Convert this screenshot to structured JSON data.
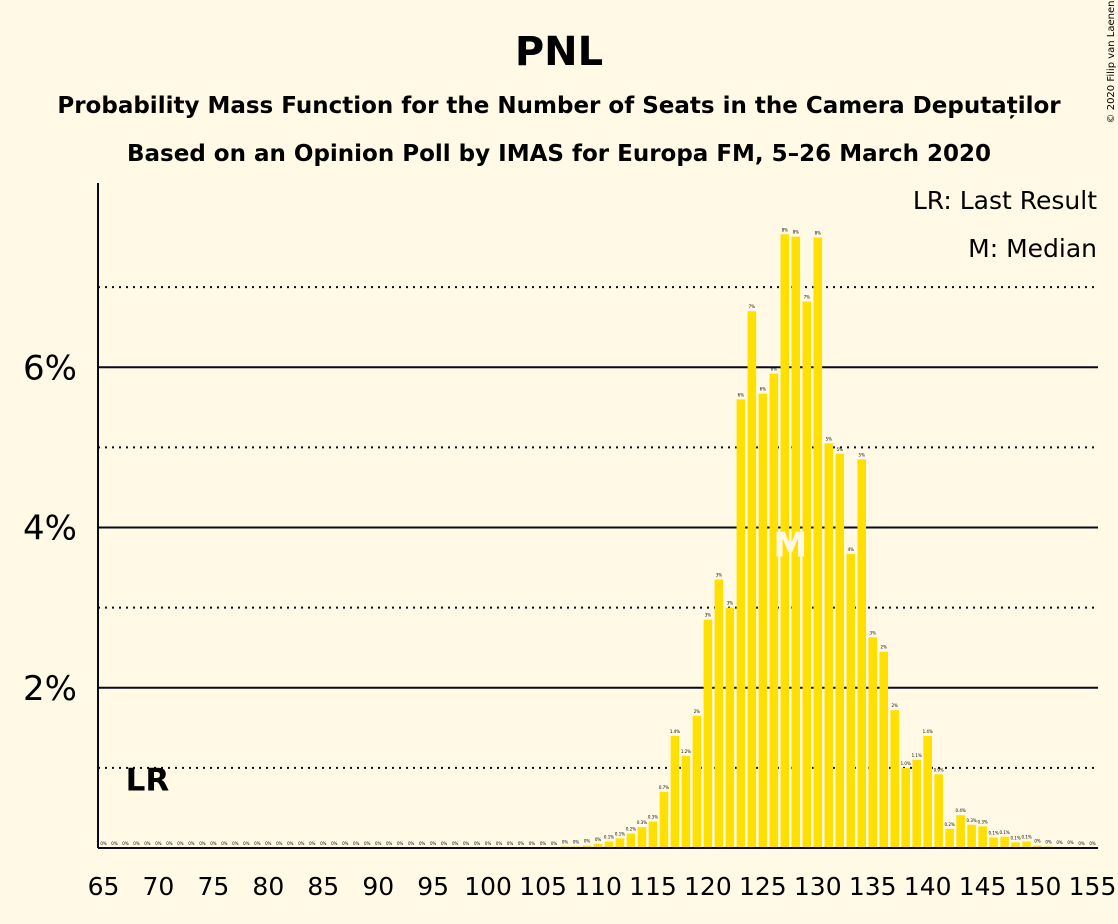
{
  "chart_data": {
    "type": "bar",
    "title": "PNL",
    "subtitle_1": "Probability Mass Function for the Number of Seats in the Camera Deputaților",
    "subtitle_2": "Based on an Opinion Poll by IMAS for Europa FM, 5–26 March 2020",
    "copyright": "© 2020 Filip van Laenen",
    "legend": [
      "LR: Last Result",
      "M: Median"
    ],
    "legend_position": "top-right",
    "last_result": {
      "seat": 69,
      "label": "LR"
    },
    "median": {
      "seat": 127,
      "label": "M"
    },
    "bar_color": "#ffe000",
    "x_range": [
      65,
      155
    ],
    "x_ticks": [
      "65",
      "70",
      "75",
      "80",
      "85",
      "90",
      "95",
      "100",
      "105",
      "110",
      "115",
      "120",
      "125",
      "130",
      "135",
      "140",
      "145",
      "150",
      "155"
    ],
    "ylim": [
      0,
      8.3
    ],
    "y_ticks": [
      {
        "value": 2,
        "label": "2%"
      },
      {
        "value": 4,
        "label": "4%"
      },
      {
        "value": 6,
        "label": "6%"
      }
    ],
    "major_gridlines": [
      2,
      4,
      6
    ],
    "minor_gridlines": [
      1,
      3,
      5,
      7
    ],
    "x": [
      65,
      66,
      67,
      68,
      69,
      70,
      71,
      72,
      73,
      74,
      75,
      76,
      77,
      78,
      79,
      80,
      81,
      82,
      83,
      84,
      85,
      86,
      87,
      88,
      89,
      90,
      91,
      92,
      93,
      94,
      95,
      96,
      97,
      98,
      99,
      100,
      101,
      102,
      103,
      104,
      105,
      106,
      107,
      108,
      109,
      110,
      111,
      112,
      113,
      114,
      115,
      116,
      117,
      118,
      119,
      120,
      121,
      122,
      123,
      124,
      125,
      126,
      127,
      128,
      129,
      130,
      131,
      132,
      133,
      134,
      135,
      136,
      137,
      138,
      139,
      140,
      141,
      142,
      143,
      144,
      145,
      146,
      147,
      148,
      149,
      150,
      151,
      152,
      153,
      154,
      155
    ],
    "values": [
      0,
      0,
      0,
      0,
      0,
      0,
      0,
      0,
      0,
      0,
      0,
      0,
      0,
      0,
      0,
      0,
      0,
      0,
      0,
      0,
      0,
      0,
      0,
      0,
      0,
      0,
      0,
      0,
      0,
      0,
      0,
      0,
      0,
      0,
      0,
      0,
      0,
      0,
      0,
      0,
      0,
      0,
      0.02,
      0.02,
      0.03,
      0.05,
      0.08,
      0.12,
      0.18,
      0.26,
      0.33,
      0.7,
      1.4,
      1.15,
      1.65,
      2.85,
      3.35,
      3.0,
      5.6,
      6.7,
      5.67,
      5.92,
      7.66,
      7.63,
      6.82,
      7.62,
      5.05,
      4.92,
      3.67,
      4.85,
      2.63,
      2.45,
      1.72,
      1.0,
      1.1,
      1.4,
      0.92,
      0.24,
      0.41,
      0.29,
      0.27,
      0.13,
      0.14,
      0.07,
      0.08,
      0.03,
      0.02,
      0.01,
      0.01,
      0,
      0
    ],
    "data_labels": [
      "0%",
      "0%",
      "0%",
      "0%",
      "0%",
      "0%",
      "0%",
      "0%",
      "0%",
      "0%",
      "0%",
      "0%",
      "0%",
      "0%",
      "0%",
      "0%",
      "0%",
      "0%",
      "0%",
      "0%",
      "0%",
      "0%",
      "0%",
      "0%",
      "0%",
      "0%",
      "0%",
      "0%",
      "0%",
      "0%",
      "0%",
      "0%",
      "0%",
      "0%",
      "0%",
      "0%",
      "0%",
      "0%",
      "0%",
      "0%",
      "0%",
      "0%",
      "0%",
      "0%",
      "0%",
      "0%",
      "0.1%",
      "0.1%",
      "0.2%",
      "0.3%",
      "0.3%",
      "0.7%",
      "1.4%",
      "1.2%",
      "2%",
      "3%",
      "3%",
      "3%",
      "6%",
      "7%",
      "6%",
      "6%",
      "8%",
      "8%",
      "7%",
      "8%",
      "5%",
      "5%",
      "4%",
      "5%",
      "3%",
      "2%",
      "2%",
      "1.0%",
      "1.1%",
      "1.4%",
      "0.9%",
      "0.2%",
      "0.4%",
      "0.3%",
      "0.3%",
      "0.1%",
      "0.1%",
      "0.1%",
      "0.1%",
      "0%",
      "0%",
      "0%",
      "0%",
      "0%",
      "0%"
    ]
  }
}
